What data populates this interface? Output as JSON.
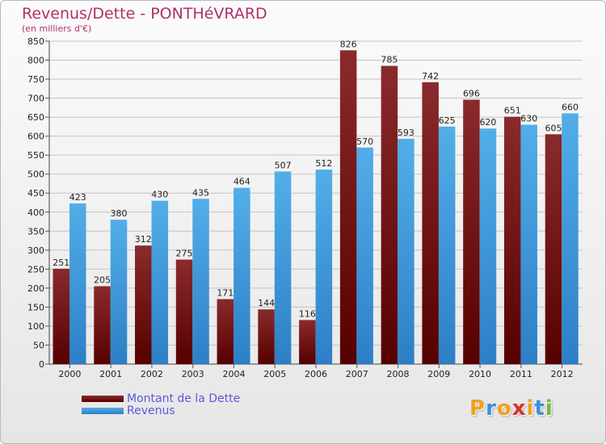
{
  "chart_data": {
    "type": "bar",
    "title": "Revenus/Dette - PONTHéVRARD",
    "subtitle": "(en milliers d'€)",
    "categories": [
      "2000",
      "2001",
      "2002",
      "2003",
      "2004",
      "2005",
      "2006",
      "2007",
      "2008",
      "2009",
      "2010",
      "2011",
      "2012"
    ],
    "series": [
      {
        "name": "Montant de la Dette",
        "color": "#7a1a1f",
        "values": [
          251,
          205,
          312,
          275,
          171,
          144,
          116,
          826,
          785,
          742,
          696,
          651,
          605
        ]
      },
      {
        "name": "Revenus",
        "color": "#3f98dd",
        "values": [
          423,
          380,
          430,
          435,
          464,
          507,
          512,
          570,
          593,
          625,
          620,
          630,
          660
        ]
      }
    ],
    "ylim": [
      0,
      850
    ],
    "yticks": [
      0,
      50,
      100,
      150,
      200,
      250,
      300,
      350,
      400,
      450,
      500,
      550,
      600,
      650,
      700,
      750,
      800,
      850
    ],
    "grid": true,
    "legend_position": "bottom-left"
  },
  "logo": {
    "text": "Proxiti",
    "letters": [
      "P",
      "r",
      "o",
      "x",
      "i",
      "t",
      "i"
    ],
    "colors": [
      "#f0a020",
      "#3c8fd8",
      "#f0a020",
      "#d8322a",
      "#f0a020",
      "#3c8fd8",
      "#78b83a"
    ]
  }
}
